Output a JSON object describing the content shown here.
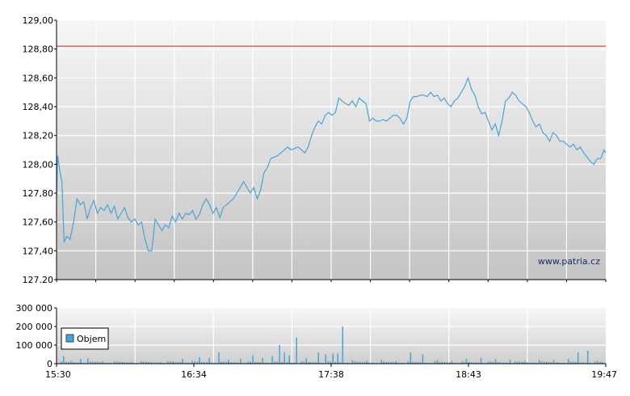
{
  "watermark": "www.patria.cz",
  "colors": {
    "line": "#4aa3d4",
    "reference": "#cc2222",
    "volume": "#4aa3d4",
    "grid": "#ffffff",
    "axis": "#000000"
  },
  "chart_data": [
    {
      "type": "line",
      "series": [
        {
          "values": [
            [
              0,
              127.76
            ],
            [
              0.3,
              128.06
            ],
            [
              1,
              127.95
            ],
            [
              1.6,
              127.88
            ],
            [
              2.2,
              127.46
            ],
            [
              3,
              127.5
            ],
            [
              4,
              127.48
            ],
            [
              5,
              127.6
            ],
            [
              6,
              127.76
            ],
            [
              7,
              127.72
            ],
            [
              8,
              127.74
            ],
            [
              9,
              127.62
            ],
            [
              10,
              127.7
            ],
            [
              11,
              127.75
            ],
            [
              12,
              127.66
            ],
            [
              13,
              127.7
            ],
            [
              14,
              127.68
            ],
            [
              15,
              127.72
            ],
            [
              16,
              127.66
            ],
            [
              17,
              127.71
            ],
            [
              18,
              127.62
            ],
            [
              19,
              127.66
            ],
            [
              20,
              127.7
            ],
            [
              21,
              127.63
            ],
            [
              22,
              127.6
            ],
            [
              23,
              127.62
            ],
            [
              24,
              127.58
            ],
            [
              25,
              127.6
            ],
            [
              26,
              127.48
            ],
            [
              27,
              127.4
            ],
            [
              28,
              127.4
            ],
            [
              29,
              127.62
            ],
            [
              30,
              127.58
            ],
            [
              31,
              127.54
            ],
            [
              32,
              127.58
            ],
            [
              33,
              127.56
            ],
            [
              34,
              127.64
            ],
            [
              35,
              127.6
            ],
            [
              36,
              127.66
            ],
            [
              37,
              127.62
            ],
            [
              38,
              127.66
            ],
            [
              39,
              127.65
            ],
            [
              40,
              127.68
            ],
            [
              41,
              127.62
            ],
            [
              42,
              127.65
            ],
            [
              43,
              127.72
            ],
            [
              44,
              127.76
            ],
            [
              45,
              127.72
            ],
            [
              46,
              127.66
            ],
            [
              47,
              127.7
            ],
            [
              48,
              127.63
            ],
            [
              49,
              127.7
            ],
            [
              50,
              127.72
            ],
            [
              51,
              127.74
            ],
            [
              52,
              127.76
            ],
            [
              53,
              127.8
            ],
            [
              54,
              127.84
            ],
            [
              55,
              127.88
            ],
            [
              56,
              127.84
            ],
            [
              57,
              127.8
            ],
            [
              58,
              127.84
            ],
            [
              59,
              127.76
            ],
            [
              60,
              127.82
            ],
            [
              61,
              127.94
            ],
            [
              62,
              127.98
            ],
            [
              63,
              128.04
            ],
            [
              64,
              128.05
            ],
            [
              65,
              128.06
            ],
            [
              66,
              128.08
            ],
            [
              67,
              128.1
            ],
            [
              68,
              128.12
            ],
            [
              69,
              128.1
            ],
            [
              70,
              128.11
            ],
            [
              71,
              128.12
            ],
            [
              72,
              128.1
            ],
            [
              73,
              128.08
            ],
            [
              74,
              128.12
            ],
            [
              75,
              128.2
            ],
            [
              76,
              128.26
            ],
            [
              77,
              128.3
            ],
            [
              78,
              128.28
            ],
            [
              79,
              128.34
            ],
            [
              80,
              128.36
            ],
            [
              81,
              128.34
            ],
            [
              82,
              128.36
            ],
            [
              83,
              128.46
            ],
            [
              84,
              128.44
            ],
            [
              85,
              128.42
            ],
            [
              86,
              128.41
            ],
            [
              87,
              128.44
            ],
            [
              88,
              128.4
            ],
            [
              89,
              128.46
            ],
            [
              90,
              128.44
            ],
            [
              91,
              128.42
            ],
            [
              92,
              128.3
            ],
            [
              93,
              128.32
            ],
            [
              94,
              128.3
            ],
            [
              95,
              128.3
            ],
            [
              96,
              128.31
            ],
            [
              97,
              128.3
            ],
            [
              98,
              128.32
            ],
            [
              99,
              128.34
            ],
            [
              100,
              128.34
            ],
            [
              101,
              128.32
            ],
            [
              102,
              128.28
            ],
            [
              103,
              128.32
            ],
            [
              104,
              128.44
            ],
            [
              105,
              128.47
            ],
            [
              106,
              128.47
            ],
            [
              107,
              128.48
            ],
            [
              108,
              128.48
            ],
            [
              109,
              128.47
            ],
            [
              110,
              128.5
            ],
            [
              111,
              128.47
            ],
            [
              112,
              128.48
            ],
            [
              113,
              128.44
            ],
            [
              114,
              128.46
            ],
            [
              115,
              128.42
            ],
            [
              116,
              128.4
            ],
            [
              117,
              128.44
            ],
            [
              118,
              128.46
            ],
            [
              119,
              128.5
            ],
            [
              120,
              128.54
            ],
            [
              121,
              128.6
            ],
            [
              122,
              128.52
            ],
            [
              123,
              128.48
            ],
            [
              124,
              128.4
            ],
            [
              125,
              128.35
            ],
            [
              126,
              128.36
            ],
            [
              127,
              128.3
            ],
            [
              128,
              128.24
            ],
            [
              129,
              128.28
            ],
            [
              130,
              128.2
            ],
            [
              131,
              128.3
            ],
            [
              132,
              128.44
            ],
            [
              133,
              128.46
            ],
            [
              134,
              128.5
            ],
            [
              135,
              128.48
            ],
            [
              136,
              128.44
            ],
            [
              137,
              128.42
            ],
            [
              138,
              128.4
            ],
            [
              139,
              128.36
            ],
            [
              140,
              128.3
            ],
            [
              141,
              128.26
            ],
            [
              142,
              128.28
            ],
            [
              143,
              128.22
            ],
            [
              144,
              128.2
            ],
            [
              145,
              128.16
            ],
            [
              146,
              128.22
            ],
            [
              147,
              128.2
            ],
            [
              148,
              128.16
            ],
            [
              149,
              128.16
            ],
            [
              150,
              128.14
            ],
            [
              151,
              128.12
            ],
            [
              152,
              128.14
            ],
            [
              153,
              128.1
            ],
            [
              154,
              128.12
            ],
            [
              155,
              128.08
            ],
            [
              156,
              128.05
            ],
            [
              157,
              128.02
            ],
            [
              158,
              128.0
            ],
            [
              159,
              128.04
            ],
            [
              160,
              128.04
            ],
            [
              161,
              128.1
            ],
            [
              161.5,
              128.08
            ]
          ]
        }
      ],
      "reference_line": 128.82,
      "x_range": [
        0,
        161.5
      ],
      "x_ticks": [
        "15:30",
        "16:34",
        "17:38",
        "18:43",
        "19:47"
      ],
      "ylim": [
        127.2,
        129.0
      ],
      "y_ticks": [
        "129,00",
        "128,80",
        "128,60",
        "128,40",
        "128,20",
        "128,00",
        "127,80",
        "127,60",
        "127,40",
        "127.20"
      ],
      "y_tick_values": [
        129.0,
        128.8,
        128.6,
        128.4,
        128.2,
        128.0,
        127.8,
        127.6,
        127.4,
        127.2
      ],
      "grid": true
    },
    {
      "type": "bar",
      "legend": "Objem",
      "legend_position": "top-left",
      "ylim": [
        0,
        300000
      ],
      "y_ticks": [
        "300 000",
        "200 000",
        "100 000",
        "0"
      ],
      "y_tick_values": [
        300000,
        200000,
        100000,
        0
      ],
      "x_ticks": [
        "15:30",
        "16:34",
        "17:38",
        "18:43",
        "19:47"
      ],
      "bars": [
        [
          2,
          40000
        ],
        [
          5,
          15000
        ],
        [
          9,
          25000
        ],
        [
          12,
          30000
        ],
        [
          15,
          10000
        ],
        [
          18,
          12000
        ],
        [
          24,
          8000
        ],
        [
          30,
          10000
        ],
        [
          36,
          6000
        ],
        [
          42,
          8000
        ],
        [
          47,
          12000
        ],
        [
          51,
          25000
        ],
        [
          55,
          15000
        ],
        [
          58,
          35000
        ],
        [
          62,
          30000
        ],
        [
          66,
          60000
        ],
        [
          70,
          20000
        ],
        [
          75,
          25000
        ],
        [
          80,
          45000
        ],
        [
          84,
          30000
        ],
        [
          88,
          40000
        ],
        [
          91,
          100000
        ],
        [
          93,
          60000
        ],
        [
          95,
          45000
        ],
        [
          98,
          140000
        ],
        [
          102,
          30000
        ],
        [
          107,
          60000
        ],
        [
          110,
          50000
        ],
        [
          113,
          55000
        ],
        [
          115,
          55000
        ],
        [
          117,
          200000
        ],
        [
          121,
          20000
        ],
        [
          127,
          15000
        ],
        [
          133,
          20000
        ],
        [
          139,
          15000
        ],
        [
          145,
          60000
        ],
        [
          150,
          50000
        ],
        [
          156,
          20000
        ],
        [
          162,
          15000
        ],
        [
          168,
          25000
        ],
        [
          174,
          30000
        ],
        [
          180,
          25000
        ],
        [
          186,
          20000
        ],
        [
          192,
          15000
        ],
        [
          198,
          20000
        ],
        [
          204,
          20000
        ],
        [
          210,
          25000
        ],
        [
          214,
          60000
        ],
        [
          218,
          70000
        ],
        [
          222,
          15000
        ]
      ],
      "grid": true
    }
  ]
}
